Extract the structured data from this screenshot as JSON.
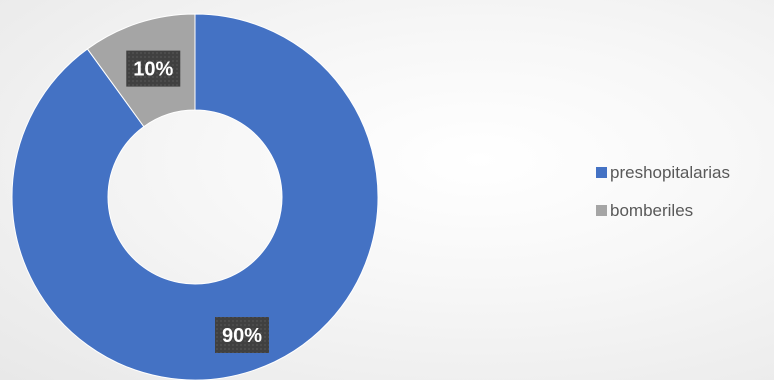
{
  "chart_data": {
    "type": "pie",
    "variant": "doughnut",
    "categories": [
      "preshopitalarias",
      "bomberiles"
    ],
    "values": [
      90,
      10
    ],
    "labels": [
      "90%",
      "10%"
    ],
    "colors": [
      "#4472C4",
      "#A5A5A5"
    ],
    "label_box_color": "#404040",
    "legend_position": "right"
  }
}
